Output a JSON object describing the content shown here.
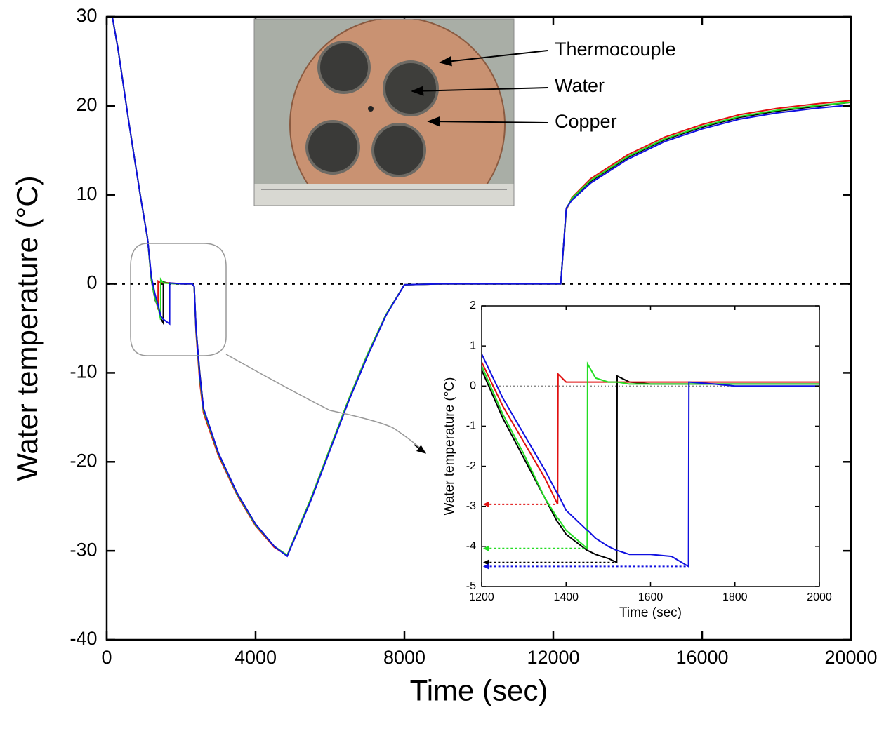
{
  "chart_data": [
    {
      "type": "line",
      "xlabel": "Time (sec)",
      "ylabel": "Water temperature (°C)",
      "annotations": [
        "Thermocouple",
        "Water",
        "Copper"
      ],
      "xlim": [
        0,
        20000
      ],
      "xticks": [
        0,
        4000,
        8000,
        12000,
        16000,
        20000
      ],
      "ylim": [
        -40,
        30
      ],
      "yticks": [
        -40,
        -30,
        -20,
        -10,
        0,
        10,
        20,
        30
      ],
      "reference_line": 0,
      "x": [
        150,
        300,
        600,
        900,
        1100,
        1200,
        1300,
        1380,
        1381,
        1450,
        1451,
        1520,
        1521,
        1690,
        1691,
        2000,
        2300,
        2350,
        2400,
        2500,
        2600,
        3000,
        3500,
        4000,
        4500,
        4850,
        5500,
        6000,
        6500,
        7000,
        7500,
        8000,
        9000,
        10000,
        11000,
        12000,
        12200,
        12350,
        12500,
        13000,
        14000,
        15000,
        16000,
        17000,
        18000,
        19000,
        20000
      ],
      "series": [
        {
          "color": "#000000",
          "values": [
            30,
            26.5,
            18,
            10,
            5,
            0.4,
            -1.8,
            -2.6,
            -2.6,
            -3.9,
            -3.9,
            -4.4,
            0.2,
            0.05,
            0.05,
            0,
            0,
            -0.3,
            -5,
            -10,
            -14,
            -19,
            -23.5,
            -27,
            -29.5,
            -30.5,
            -24,
            -18.5,
            -13,
            -8,
            -3.5,
            -0.1,
            0,
            0,
            0,
            0,
            0,
            8.5,
            9.5,
            11.5,
            14.2,
            16.2,
            17.6,
            18.7,
            19.4,
            19.9,
            20.4
          ]
        },
        {
          "color": "#e01010",
          "values": [
            30,
            26.5,
            18,
            10,
            5,
            0.6,
            -1.4,
            -2.9,
            0.3,
            0.1,
            0.1,
            0.1,
            0.1,
            0.1,
            0.1,
            0,
            0,
            -0.3,
            -5.5,
            -11,
            -14.5,
            -19.3,
            -23.7,
            -27.2,
            -29.6,
            -30.5,
            -24,
            -18.5,
            -13,
            -8,
            -3.5,
            -0.1,
            0,
            0,
            0,
            0,
            0,
            8.3,
            9.7,
            11.8,
            14.5,
            16.5,
            17.9,
            19,
            19.7,
            20.2,
            20.6
          ]
        },
        {
          "color": "#22dd22",
          "values": [
            30,
            26.5,
            18,
            10,
            5,
            0.5,
            -1.7,
            -2.6,
            -2.6,
            -4.05,
            0.5,
            0.1,
            0.1,
            0.05,
            0.05,
            0,
            0,
            -0.3,
            -5.2,
            -10.5,
            -14.2,
            -19.1,
            -23.6,
            -27.1,
            -29.5,
            -30.5,
            -24,
            -18.5,
            -13,
            -8,
            -3.5,
            -0.1,
            0,
            0,
            0,
            0,
            0,
            8.4,
            9.6,
            11.6,
            14.3,
            16.3,
            17.7,
            18.8,
            19.5,
            20,
            20.4
          ]
        },
        {
          "color": "#1010e0",
          "values": [
            30,
            26.5,
            18,
            10,
            5,
            0.8,
            -1.2,
            -2.4,
            -2.4,
            -3.6,
            -3.6,
            -4.0,
            -4.0,
            -4.5,
            0.1,
            0,
            0,
            -0.3,
            -5,
            -10.2,
            -14,
            -19,
            -23.5,
            -27,
            -29.5,
            -30.6,
            -24.2,
            -18.7,
            -13.2,
            -8.2,
            -3.6,
            -0.1,
            0,
            0,
            0,
            0,
            0,
            8.5,
            9.4,
            11.3,
            14,
            16,
            17.4,
            18.5,
            19.2,
            19.7,
            20.1
          ]
        }
      ]
    },
    {
      "type": "line",
      "xlabel": "Time (sec)",
      "ylabel": "Water temperature (°C)",
      "xlim": [
        1200,
        2000
      ],
      "xticks": [
        1200,
        1400,
        1600,
        1800,
        2000
      ],
      "ylim": [
        -5,
        2
      ],
      "yticks": [
        -5,
        -4,
        -3,
        -2,
        -1,
        0,
        1,
        2
      ],
      "reference_line": 0,
      "x": [
        1200,
        1250,
        1300,
        1350,
        1380,
        1381,
        1400,
        1450,
        1451,
        1470,
        1500,
        1520,
        1521,
        1550,
        1600,
        1650,
        1690,
        1691,
        1750,
        1800,
        1900,
        2000
      ],
      "series": [
        {
          "color": "#000000",
          "values": [
            0.4,
            -0.8,
            -1.8,
            -2.8,
            -3.4,
            -3.4,
            -3.7,
            -4.1,
            -4.1,
            -4.2,
            -4.3,
            -4.4,
            0.25,
            0.1,
            0.05,
            0.05,
            0.05,
            0.05,
            0.05,
            0.05,
            0.05,
            0.05
          ]
        },
        {
          "color": "#e01010",
          "values": [
            0.6,
            -0.5,
            -1.4,
            -2.3,
            -2.95,
            0.3,
            0.1,
            0.1,
            0.1,
            0.1,
            0.1,
            0.1,
            0.1,
            0.1,
            0.1,
            0.1,
            0.1,
            0.1,
            0.1,
            0.1,
            0.1,
            0.1
          ]
        },
        {
          "color": "#22dd22",
          "values": [
            0.5,
            -0.7,
            -1.7,
            -2.8,
            -3.3,
            -3.3,
            -3.6,
            -4.05,
            0.55,
            0.2,
            0.1,
            0.1,
            0.1,
            0.05,
            0.05,
            0.05,
            0.05,
            0.05,
            0.05,
            0.05,
            0.05,
            0.05
          ]
        },
        {
          "color": "#1010e0",
          "values": [
            0.8,
            -0.3,
            -1.2,
            -2.1,
            -2.7,
            -2.7,
            -3.1,
            -3.6,
            -3.6,
            -3.8,
            -4.0,
            -4.1,
            -4.1,
            -4.2,
            -4.2,
            -4.25,
            -4.5,
            0.1,
            0.05,
            0,
            0,
            0
          ]
        }
      ]
    }
  ]
}
